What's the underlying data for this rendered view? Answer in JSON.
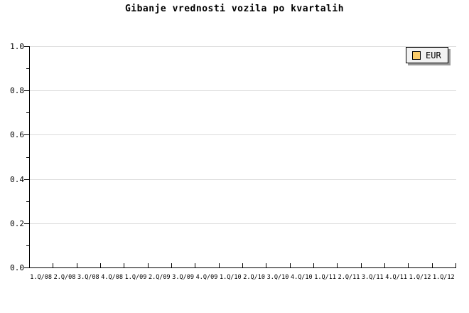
{
  "title": "Gibanje vrednosti vozila po kvartalih",
  "legend": {
    "position": "top-right",
    "items": [
      {
        "label": "EUR",
        "swatch_color": "#facc6b"
      }
    ]
  },
  "colors": {
    "background": "#ffffff",
    "axis": "#000000",
    "grid": "#dcdcdc",
    "legend_background": "#f2f2f2",
    "legend_border": "#000000",
    "legend_shadow": "#999999",
    "series_eur": "#facc6b",
    "text": "#000000"
  },
  "chart_data": {
    "type": "line",
    "title": "Gibanje vrednosti vozila po kvartalih",
    "categories": [
      "1.Q/08",
      "2.Q/08",
      "3.Q/08",
      "4.Q/08",
      "1.Q/09",
      "2.Q/09",
      "3.Q/09",
      "4.Q/09",
      "1.Q/10",
      "2.Q/10",
      "3.Q/10",
      "4.Q/10",
      "1.Q/11",
      "2.Q/11",
      "3.Q/11",
      "4.Q/11",
      "1.Q/12",
      "1.Q/12"
    ],
    "series": [
      {
        "name": "EUR",
        "color": "#facc6b",
        "values": []
      }
    ],
    "xlabel": "",
    "ylabel": "",
    "ylim": [
      0.0,
      1.0
    ],
    "yticks": [
      0.0,
      0.2,
      0.4,
      0.6,
      0.8,
      1.0
    ],
    "ytick_labels": [
      "0.0",
      "0.2",
      "0.4",
      "0.6",
      "0.8",
      "1.0"
    ],
    "yticks_minor": [
      0.1,
      0.3,
      0.5,
      0.7,
      0.9
    ],
    "grid": "horizontal-major-only",
    "legend_position": "top-right",
    "plot_is_empty": true
  }
}
